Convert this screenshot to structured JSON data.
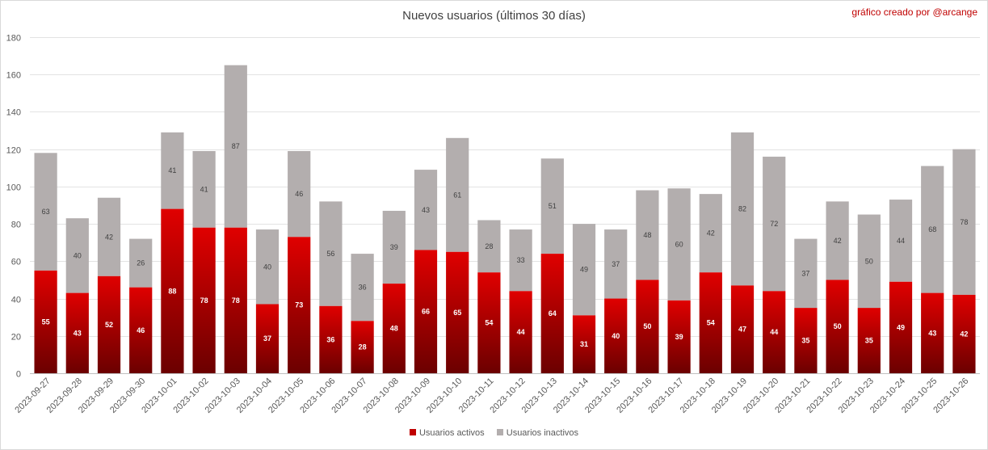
{
  "chart_data": {
    "type": "bar",
    "stacked": true,
    "title": "Nuevos usuarios (últimos 30 días)",
    "annotation": "gráfico creado por @arcange",
    "categories": [
      "2023-09-27",
      "2023-09-28",
      "2023-09-29",
      "2023-09-30",
      "2023-10-01",
      "2023-10-02",
      "2023-10-03",
      "2023-10-04",
      "2023-10-05",
      "2023-10-06",
      "2023-10-07",
      "2023-10-08",
      "2023-10-09",
      "2023-10-10",
      "2023-10-11",
      "2023-10-12",
      "2023-10-13",
      "2023-10-14",
      "2023-10-15",
      "2023-10-16",
      "2023-10-17",
      "2023-10-18",
      "2023-10-19",
      "2023-10-20",
      "2023-10-21",
      "2023-10-22",
      "2023-10-23",
      "2023-10-24",
      "2023-10-25",
      "2023-10-26"
    ],
    "series": [
      {
        "name": "Usuarios activos",
        "color": "#c00000",
        "values": [
          55,
          43,
          52,
          46,
          88,
          78,
          78,
          37,
          73,
          36,
          28,
          48,
          66,
          65,
          54,
          44,
          64,
          31,
          40,
          50,
          39,
          54,
          47,
          44,
          35,
          50,
          35,
          49,
          43,
          42
        ]
      },
      {
        "name": "Usuarios inactivos",
        "color": "#b3aeae",
        "values": [
          63,
          40,
          42,
          26,
          41,
          41,
          87,
          40,
          46,
          56,
          36,
          39,
          43,
          61,
          28,
          33,
          51,
          49,
          37,
          48,
          60,
          42,
          82,
          72,
          37,
          42,
          50,
          44,
          68,
          78
        ]
      }
    ],
    "ylim": [
      0,
      180
    ],
    "yticks": [
      "0",
      "20",
      "40",
      "60",
      "80",
      "100",
      "120",
      "140",
      "160",
      "180"
    ],
    "grid": true,
    "legend_position": "bottom"
  }
}
